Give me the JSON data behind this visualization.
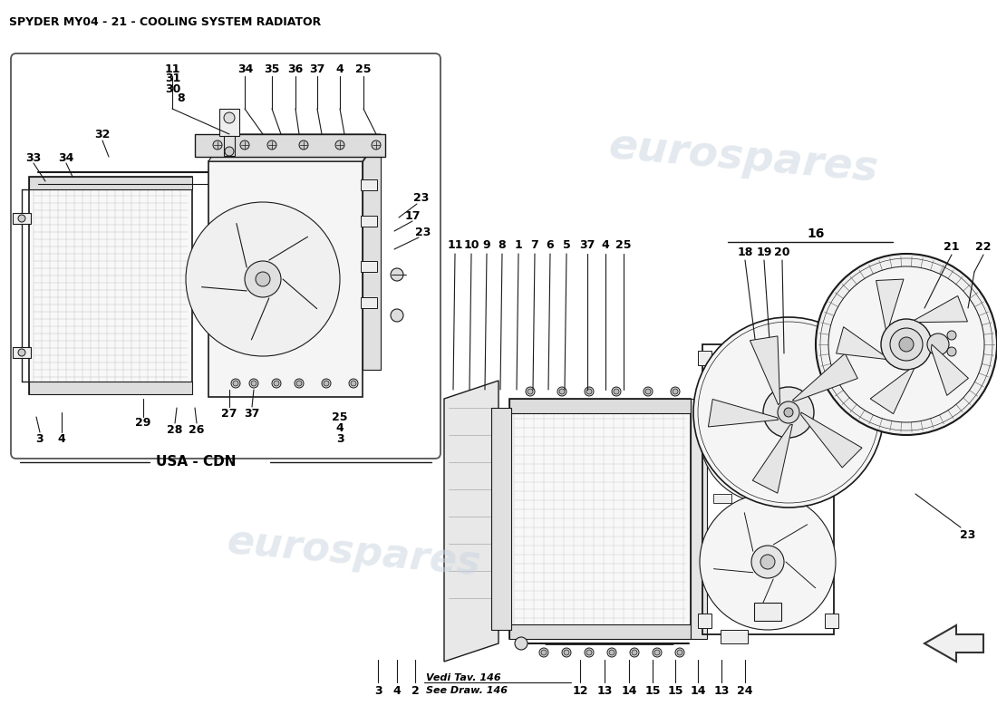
{
  "title": "SPYDER MY04 - 21 - COOLING SYSTEM RADIATOR",
  "bg_color": "#FFFFFF",
  "watermark": "eurospares",
  "wm_color": "#C8D4DE",
  "wm_alpha": 0.5,
  "line_color": "#1A1A1A",
  "label_color": "#000000",
  "usa_cdn": "USA - CDN"
}
